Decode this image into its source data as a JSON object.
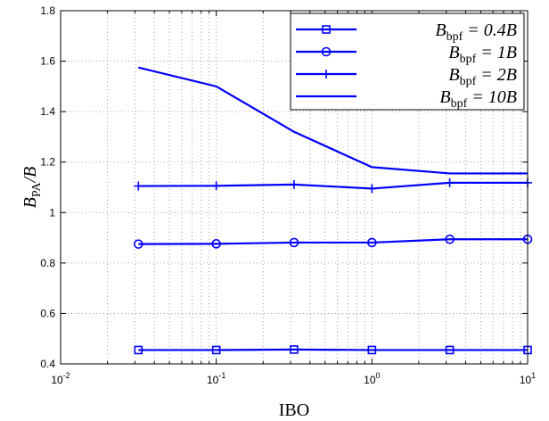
{
  "chart_data": {
    "type": "line",
    "title": "",
    "xlabel": "IBO",
    "ylabel": {
      "main": "B",
      "sub": "PA",
      "tail": "/B"
    },
    "xscale": "log",
    "xlim": [
      0.01,
      10
    ],
    "ylim": [
      0.4,
      1.8
    ],
    "grid": true,
    "legend_position": "top-right",
    "x": [
      0.0316,
      0.1,
      0.316,
      1,
      3.16,
      10
    ],
    "x_tick_labels": [
      {
        "base": "10",
        "exp": "-2"
      },
      {
        "base": "10",
        "exp": "-1"
      },
      {
        "base": "10",
        "exp": "0"
      },
      {
        "base": "10",
        "exp": "1"
      }
    ],
    "y_ticks": [
      "0.4",
      "0.6",
      "0.8",
      "1",
      "1.2",
      "1.4",
      "1.6",
      "1.8"
    ],
    "series": [
      {
        "legend": {
          "main": "B",
          "sub": "bpf",
          "tail": " = 0.4B"
        },
        "marker": "square",
        "values": [
          0.455,
          0.455,
          0.457,
          0.455,
          0.455,
          0.455
        ]
      },
      {
        "legend": {
          "main": "B",
          "sub": "bpf",
          "tail": " = 1B"
        },
        "marker": "circle",
        "values": [
          0.875,
          0.876,
          0.881,
          0.881,
          0.894,
          0.894
        ]
      },
      {
        "legend": {
          "main": "B",
          "sub": "bpf",
          "tail": " = 2B"
        },
        "marker": "plus",
        "values": [
          1.105,
          1.106,
          1.111,
          1.095,
          1.118,
          1.118
        ]
      },
      {
        "legend": {
          "main": "B",
          "sub": "bpf",
          "tail": " = 10B"
        },
        "marker": "none",
        "values": [
          1.575,
          1.5,
          1.32,
          1.18,
          1.155,
          1.155
        ]
      }
    ],
    "colors": {
      "line": "#0000ff",
      "axis": "#000000",
      "grid": "#888888"
    }
  }
}
